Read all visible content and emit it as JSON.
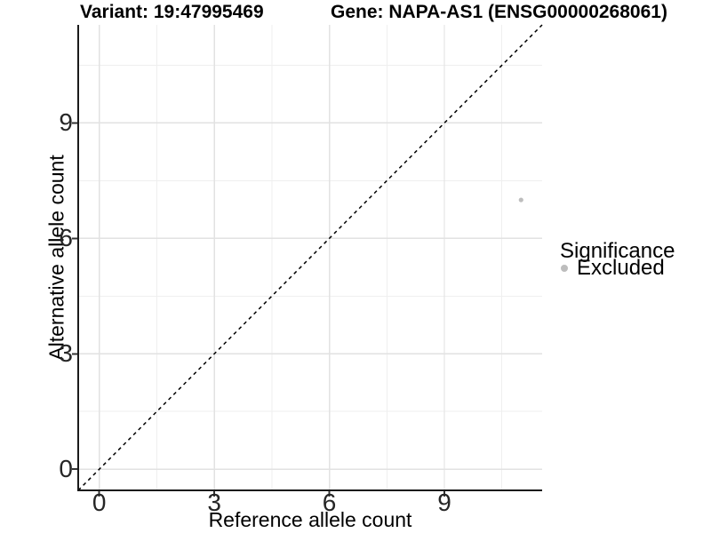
{
  "title": {
    "variant": "Variant: 19:47995469",
    "gene": "Gene: NAPA-AS1 (ENSG00000268061)"
  },
  "axes": {
    "x_label": "Reference allele count",
    "y_label": "Alternative allele count"
  },
  "legend": {
    "title": "Significance",
    "items": [
      {
        "label": "Excluded",
        "color": "#bdbdbd"
      }
    ]
  },
  "colors": {
    "background": "#ffffff",
    "point": "#bdbdbd",
    "grid_major": "#e2e2e2",
    "grid_minor": "#efefef",
    "axis_line": "#1a1a1a",
    "tick_mark": "#333333",
    "tick_text": "#262626",
    "reference_line": "#000000"
  },
  "chart_data": {
    "type": "scatter",
    "title": "Variant: 19:47995469    Gene: NAPA-AS1 (ENSG00000268061)",
    "xlabel": "Reference allele count",
    "ylabel": "Alternative allele count",
    "xlim": [
      -0.55,
      11.55
    ],
    "ylim": [
      -0.55,
      11.55
    ],
    "x_ticks": [
      0,
      3,
      6,
      9
    ],
    "y_ticks": [
      0,
      3,
      6,
      9
    ],
    "x_minor_ticks": [
      1.5,
      4.5,
      7.5,
      10.5
    ],
    "y_minor_ticks": [
      1.5,
      4.5,
      7.5,
      10.5
    ],
    "grid": true,
    "legend_position": "right",
    "series": [
      {
        "name": "Excluded",
        "color": "#bdbdbd",
        "points": [
          {
            "x": 11,
            "y": 7
          }
        ]
      }
    ],
    "reference_line": {
      "type": "identity y=x",
      "style": "dashed",
      "color": "#000000"
    }
  }
}
